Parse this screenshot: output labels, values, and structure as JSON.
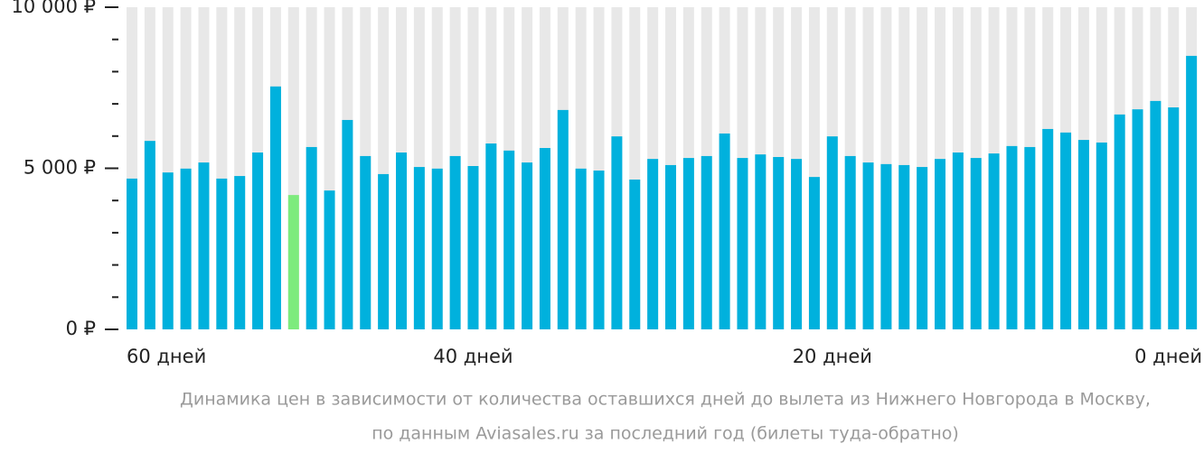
{
  "chart_data": {
    "type": "bar",
    "categories": [
      "60 дней",
      null,
      null,
      null,
      null,
      null,
      null,
      null,
      null,
      null,
      null,
      null,
      null,
      null,
      null,
      null,
      null,
      null,
      null,
      "40 дней",
      null,
      null,
      null,
      null,
      null,
      null,
      null,
      null,
      null,
      null,
      null,
      null,
      null,
      null,
      null,
      null,
      null,
      null,
      null,
      "20 дней",
      null,
      null,
      null,
      null,
      null,
      null,
      null,
      null,
      null,
      null,
      null,
      null,
      null,
      null,
      null,
      null,
      null,
      null,
      null,
      "0 дней"
    ],
    "values": [
      4680,
      5850,
      4870,
      4990,
      5180,
      4680,
      4760,
      5490,
      7540,
      4170,
      5660,
      4310,
      6500,
      5380,
      4820,
      5490,
      5040,
      4990,
      5380,
      5070,
      5770,
      5550,
      5180,
      5630,
      6810,
      4990,
      4930,
      5990,
      4650,
      5290,
      5100,
      5320,
      5380,
      6080,
      5320,
      5430,
      5350,
      5290,
      4730,
      5990,
      5380,
      5180,
      5130,
      5100,
      5040,
      5290,
      5490,
      5320,
      5460,
      5690,
      5660,
      6220,
      6110,
      5880,
      5800,
      6670,
      6830,
      7090,
      6890,
      8490
    ],
    "color": "#00b1dd",
    "highlight": {
      "index": 9,
      "color": "#7deb7d"
    },
    "column_background": "#e8e8e8",
    "ylim": [
      0,
      10000
    ],
    "yticks": [
      {
        "value": 0,
        "label": "0 ₽"
      },
      {
        "value": 5000,
        "label": "5 000 ₽"
      },
      {
        "value": 10000,
        "label": "10 000 ₽"
      }
    ],
    "minor_yticks": [
      1000,
      2000,
      3000,
      4000,
      6000,
      7000,
      8000,
      9000
    ],
    "caption": [
      "Динамика цен в зависимости от количества оставшихся дней до вылета из Нижнего Новгорода в Москву,",
      "по данным Aviasales.ru за последний год (билеты туда-обратно)"
    ]
  }
}
